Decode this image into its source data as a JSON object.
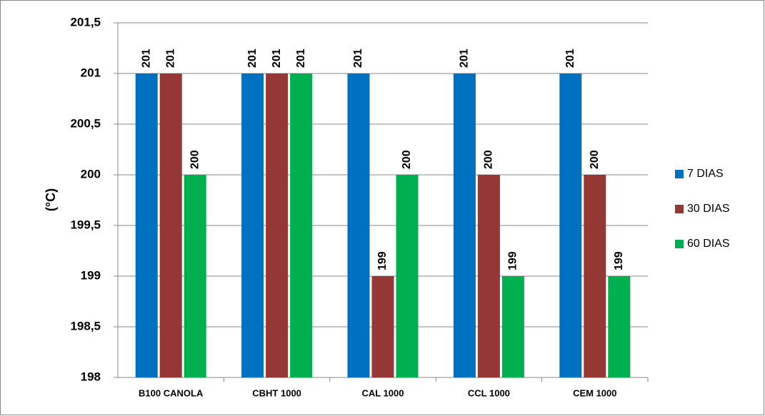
{
  "chart_data": {
    "type": "bar",
    "y_label": "(°C)",
    "categories": [
      "B100 CANOLA",
      "CBHT 1000",
      "CAL 1000",
      "CCL 1000",
      "CEM 1000"
    ],
    "series": [
      {
        "name": "7 DIAS",
        "color": "#0070c0",
        "values": [
          201,
          201,
          201,
          201,
          201
        ]
      },
      {
        "name": "30 DIAS",
        "color": "#953735",
        "values": [
          201,
          201,
          199,
          200,
          200
        ]
      },
      {
        "name": "60 DIAS",
        "color": "#00b050",
        "values": [
          200,
          201,
          200,
          199,
          199
        ]
      }
    ],
    "ylim": [
      198,
      201.5
    ],
    "yticks": [
      198,
      {
        "value": 198.5,
        "label": "198,5"
      },
      199,
      {
        "value": 199.5,
        "label": "199,5"
      },
      200,
      {
        "value": 200.5,
        "label": "200,5"
      },
      201,
      {
        "value": 201.5,
        "label": "201,5"
      }
    ],
    "grid": true
  }
}
